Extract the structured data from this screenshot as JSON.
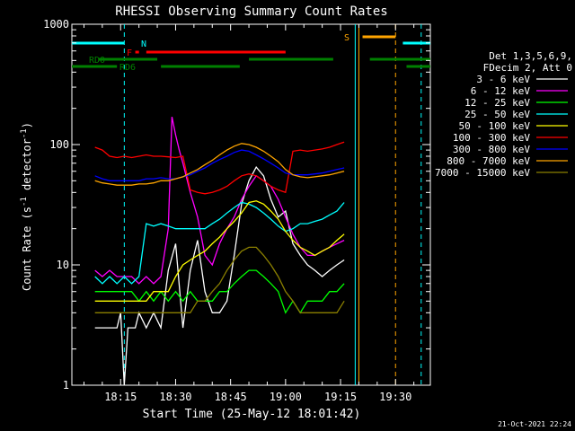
{
  "chart_data": {
    "type": "line",
    "title": "RHESSI Observing Summary Count Rates",
    "xlabel": "Start Time (25-May-12 18:01:42)",
    "ylabel_main": "Count Rate (s",
    "ylabel_sup1": "-1",
    "ylabel_mid": " detector",
    "ylabel_sup2": "-1",
    "ylabel_end": ")",
    "y_scale": "log",
    "ylim": [
      1,
      1000
    ],
    "xlim_minutes": [
      1.7,
      99.5
    ],
    "x_ticks": [
      {
        "m": 15,
        "label": "18:15"
      },
      {
        "m": 30,
        "label": "18:30"
      },
      {
        "m": 45,
        "label": "18:45"
      },
      {
        "m": 60,
        "label": "19:00"
      },
      {
        "m": 75,
        "label": "19:15"
      },
      {
        "m": 90,
        "label": "19:30"
      }
    ],
    "y_ticks": [
      {
        "v": 1,
        "label": "1"
      },
      {
        "v": 10,
        "label": "10"
      },
      {
        "v": 100,
        "label": "100"
      },
      {
        "v": 1000,
        "label": "1000"
      }
    ],
    "legend_header": [
      "Det 1,3,5,6,9,",
      "FDecim 2, Att 0"
    ],
    "series": [
      {
        "name": "3 - 6 keV",
        "color": "#ffffff",
        "x": [
          8,
          10,
          12,
          14,
          15,
          16,
          17,
          18,
          19,
          20,
          22,
          24,
          26,
          28,
          30,
          32,
          34,
          36,
          38,
          40,
          42,
          44,
          46,
          48,
          50,
          52,
          54,
          56,
          58,
          60,
          62,
          64,
          66,
          68,
          70,
          72,
          74,
          76
        ],
        "y": [
          3,
          3,
          3,
          3,
          4,
          1,
          3,
          3,
          3,
          4,
          3,
          4,
          3,
          9,
          15,
          3,
          9,
          16,
          6,
          4,
          4,
          5,
          12,
          32,
          50,
          65,
          55,
          35,
          25,
          28,
          15,
          12,
          10,
          9,
          8,
          9,
          10,
          11
        ]
      },
      {
        "name": "6 - 12 keV",
        "color": "#ff00ff",
        "x": [
          8,
          10,
          12,
          14,
          16,
          18,
          20,
          22,
          24,
          26,
          28,
          29,
          30,
          31,
          32,
          34,
          36,
          38,
          40,
          42,
          44,
          46,
          48,
          50,
          52,
          54,
          56,
          58,
          60,
          62,
          64,
          66,
          68,
          70,
          72,
          74,
          76
        ],
        "y": [
          9,
          8,
          9,
          8,
          8,
          8,
          7,
          8,
          7,
          8,
          20,
          170,
          120,
          90,
          70,
          40,
          25,
          12,
          10,
          15,
          20,
          25,
          35,
          45,
          55,
          50,
          45,
          35,
          25,
          18,
          14,
          12,
          12,
          13,
          14,
          15,
          16
        ]
      },
      {
        "name": "12 - 25 keV",
        "color": "#00ff00",
        "x": [
          8,
          10,
          12,
          14,
          16,
          18,
          20,
          22,
          24,
          26,
          28,
          30,
          32,
          34,
          36,
          38,
          40,
          42,
          44,
          46,
          48,
          50,
          52,
          54,
          56,
          58,
          60,
          62,
          64,
          66,
          68,
          70,
          72,
          74,
          76
        ],
        "y": [
          6,
          6,
          6,
          6,
          6,
          6,
          5,
          6,
          5,
          6,
          5,
          6,
          5,
          6,
          5,
          5,
          5,
          6,
          6,
          7,
          8,
          9,
          9,
          8,
          7,
          6,
          4,
          5,
          4,
          5,
          5,
          5,
          6,
          6,
          7
        ]
      },
      {
        "name": "25 - 50 keV",
        "color": "#00ffff",
        "x": [
          8,
          10,
          12,
          14,
          16,
          18,
          20,
          22,
          24,
          26,
          28,
          30,
          32,
          34,
          36,
          38,
          40,
          42,
          44,
          46,
          48,
          50,
          52,
          54,
          56,
          58,
          60,
          62,
          64,
          66,
          68,
          70,
          72,
          74,
          76
        ],
        "y": [
          8,
          7,
          8,
          7,
          8,
          7,
          8,
          22,
          21,
          22,
          21,
          20,
          20,
          20,
          20,
          20,
          22,
          24,
          27,
          30,
          33,
          32,
          30,
          27,
          24,
          21,
          19,
          20,
          22,
          22,
          23,
          24,
          26,
          28,
          33
        ]
      },
      {
        "name": "50 - 100 keV",
        "color": "#ffff00",
        "x": [
          8,
          10,
          12,
          14,
          16,
          18,
          20,
          22,
          24,
          26,
          28,
          30,
          32,
          34,
          36,
          38,
          40,
          42,
          44,
          46,
          48,
          50,
          52,
          54,
          56,
          58,
          60,
          62,
          64,
          66,
          68,
          70,
          72,
          74,
          76
        ],
        "y": [
          5,
          5,
          5,
          5,
          5,
          5,
          5,
          5,
          6,
          6,
          6,
          8,
          10,
          11,
          12,
          13,
          15,
          17,
          20,
          23,
          27,
          33,
          34,
          32,
          28,
          24,
          19,
          16,
          14,
          13,
          12,
          13,
          14,
          16,
          18
        ]
      },
      {
        "name": "100 - 300 keV",
        "color": "#ff0000",
        "x": [
          8,
          10,
          12,
          14,
          16,
          18,
          20,
          22,
          24,
          26,
          28,
          30,
          32,
          34,
          36,
          38,
          40,
          42,
          44,
          46,
          48,
          50,
          52,
          54,
          56,
          58,
          60,
          62,
          64,
          66,
          68,
          70,
          72,
          74,
          76
        ],
        "y": [
          95,
          90,
          80,
          78,
          80,
          78,
          80,
          82,
          80,
          80,
          79,
          78,
          80,
          42,
          40,
          39,
          40,
          42,
          45,
          50,
          55,
          57,
          55,
          50,
          45,
          42,
          40,
          88,
          90,
          88,
          90,
          92,
          95,
          100,
          105
        ]
      },
      {
        "name": "300 - 800 keV",
        "color": "#0000ff",
        "x": [
          8,
          10,
          12,
          14,
          16,
          18,
          20,
          22,
          24,
          26,
          28,
          30,
          32,
          34,
          36,
          38,
          40,
          42,
          44,
          46,
          48,
          50,
          52,
          54,
          56,
          58,
          60,
          62,
          64,
          66,
          68,
          70,
          72,
          74,
          76
        ],
        "y": [
          55,
          52,
          50,
          50,
          50,
          50,
          50,
          52,
          52,
          53,
          52,
          52,
          54,
          56,
          60,
          64,
          70,
          75,
          80,
          86,
          90,
          88,
          82,
          76,
          70,
          64,
          58,
          56,
          56,
          56,
          57,
          58,
          60,
          62,
          64
        ]
      },
      {
        "name": "800 - 7000 keV",
        "color": "#ffa500",
        "x": [
          8,
          10,
          12,
          14,
          16,
          18,
          20,
          22,
          24,
          26,
          28,
          30,
          32,
          34,
          36,
          38,
          40,
          42,
          44,
          46,
          48,
          50,
          52,
          54,
          56,
          58,
          60,
          62,
          64,
          66,
          68,
          70,
          72,
          74,
          76
        ],
        "y": [
          50,
          48,
          47,
          46,
          46,
          46,
          47,
          47,
          48,
          50,
          50,
          52,
          54,
          58,
          62,
          68,
          74,
          82,
          90,
          97,
          102,
          100,
          95,
          88,
          80,
          72,
          62,
          56,
          54,
          53,
          54,
          55,
          56,
          58,
          60
        ]
      },
      {
        "name": "7000 - 15000 keV",
        "color": "#8b8000",
        "x": [
          8,
          10,
          12,
          14,
          16,
          18,
          20,
          22,
          24,
          26,
          28,
          30,
          32,
          34,
          36,
          38,
          40,
          42,
          44,
          46,
          48,
          50,
          52,
          54,
          56,
          58,
          60,
          62,
          64,
          66,
          68,
          70,
          72,
          74,
          76
        ],
        "y": [
          4,
          4,
          4,
          4,
          4,
          4,
          4,
          4,
          4,
          4,
          4,
          4,
          4,
          4,
          5,
          5,
          6,
          7,
          9,
          11,
          13,
          14,
          14,
          12,
          10,
          8,
          6,
          5,
          4,
          4,
          4,
          4,
          4,
          4,
          5
        ]
      }
    ],
    "flags": [
      {
        "label": "RD0",
        "color": "#008000",
        "y": 1.6,
        "segments": [
          [
            9,
            25
          ],
          [
            50,
            73
          ],
          [
            83,
            99.5
          ]
        ]
      },
      {
        "label": "RD6",
        "color": "#008000",
        "y": 2.5,
        "segments": [
          [
            1.7,
            14
          ],
          [
            26,
            47.5
          ],
          [
            93,
            99.5
          ]
        ]
      },
      {
        "label": "F",
        "color": "#ff0000",
        "y": 1.3,
        "segments": [
          [
            19,
            20
          ],
          [
            22,
            60
          ]
        ]
      },
      {
        "label": "N",
        "color": "#00ffff",
        "y": 0.85,
        "segments": [
          [
            1.7,
            16
          ],
          [
            92,
            99.5
          ]
        ]
      },
      {
        "label": "S",
        "color": "#ffa500",
        "y": 0.7,
        "segments": [
          [
            81,
            90
          ]
        ]
      }
    ],
    "vlines": [
      {
        "m": 16,
        "color": "#00ffff",
        "dash": true
      },
      {
        "m": 79,
        "color": "#00ffff",
        "dash": false
      },
      {
        "m": 80,
        "color": "#ffa500",
        "dash": false
      },
      {
        "m": 90,
        "color": "#ffa500",
        "dash": true
      },
      {
        "m": 97,
        "color": "#00ffff",
        "dash": true
      }
    ],
    "grid": false,
    "legend_position": "right",
    "footer": "21-Oct-2021 22:24"
  }
}
